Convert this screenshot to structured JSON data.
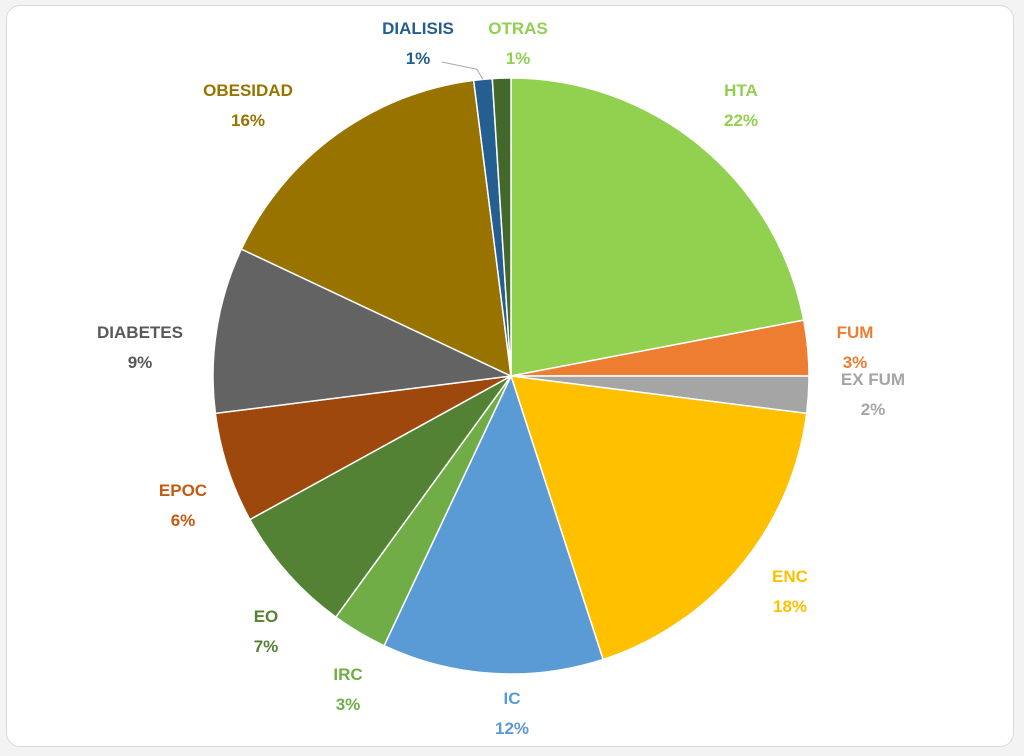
{
  "chart_data": {
    "type": "pie",
    "title": "",
    "slices": [
      {
        "label": "HTA",
        "value": 22,
        "pct_text": "22%",
        "color": "#92d050"
      },
      {
        "label": "FUM",
        "value": 3,
        "pct_text": "3%",
        "color": "#ed7d31"
      },
      {
        "label": "EX FUM",
        "value": 2,
        "pct_text": "2%",
        "color": "#a5a5a5"
      },
      {
        "label": "ENC",
        "value": 18,
        "pct_text": "18%",
        "color": "#ffc000"
      },
      {
        "label": "IC",
        "value": 12,
        "pct_text": "12%",
        "color": "#5b9bd5"
      },
      {
        "label": "IRC",
        "value": 3,
        "pct_text": "3%",
        "color": "#70ad47"
      },
      {
        "label": "EO",
        "value": 7,
        "pct_text": "7%",
        "color": "#548235"
      },
      {
        "label": "EPOC",
        "value": 6,
        "pct_text": "6%",
        "color": "#9e480e"
      },
      {
        "label": "DIABETES",
        "value": 9,
        "pct_text": "9%",
        "color": "#636363"
      },
      {
        "label": "OBESIDAD",
        "value": 16,
        "pct_text": "16%",
        "color": "#997300"
      },
      {
        "label": "DIALISIS",
        "value": 1,
        "pct_text": "1%",
        "color": "#255e91"
      },
      {
        "label": "OTRAS",
        "value": 1,
        "pct_text": "1%",
        "color": "#43682b"
      }
    ],
    "label_colors": {
      "HTA": "#92d050",
      "FUM": "#ed7d31",
      "EX FUM": "#a5a5a5",
      "ENC": "#ffc000",
      "IC": "#5b9bd5",
      "IRC": "#70ad47",
      "EO": "#548235",
      "EPOC": "#c55a11",
      "DIABETES": "#595959",
      "OBESIDAD": "#997300",
      "DIALISIS": "#255e91",
      "OTRAS": "#92d050"
    },
    "legend": "none",
    "data_labels": "category name and percentage"
  }
}
